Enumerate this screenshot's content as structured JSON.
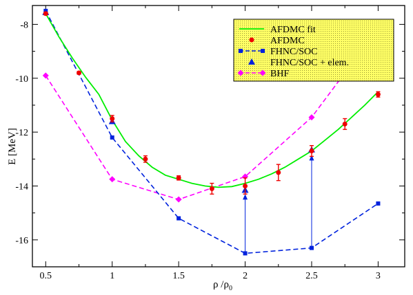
{
  "chart_data": {
    "type": "line",
    "xlabel": "ρ /ρ",
    "xlabel_sub": "0",
    "ylabel": "E [MeV]",
    "xlim": [
      0.4,
      3.2
    ],
    "ylim": [
      -17.0,
      -7.3
    ],
    "xticks": [
      0.5,
      1,
      1.5,
      2,
      2.5,
      3
    ],
    "xtick_labels": [
      "0.5",
      "1",
      "1.5",
      "2",
      "2.5",
      "3"
    ],
    "yticks": [
      -16,
      -14,
      -12,
      -10,
      -8
    ],
    "ytick_labels": [
      "-16",
      "-14",
      "-12",
      "-10",
      "-8"
    ],
    "legend_position": "top-right",
    "legend_bg": "#ffff66",
    "series": [
      {
        "name": "AFDMC fit",
        "kind": "fit",
        "color": "#00ee00",
        "x": [
          0.5,
          0.6,
          0.7,
          0.8,
          0.9,
          1.0,
          1.1,
          1.2,
          1.3,
          1.4,
          1.5,
          1.6,
          1.7,
          1.8,
          1.9,
          2.0,
          2.1,
          2.2,
          2.3,
          2.4,
          2.5,
          2.6,
          2.7,
          2.8,
          2.9,
          3.0
        ],
        "y": [
          -7.6,
          -8.47,
          -9.25,
          -9.96,
          -10.6,
          -11.55,
          -12.35,
          -12.88,
          -13.3,
          -13.6,
          -13.75,
          -13.9,
          -14.0,
          -14.05,
          -14.02,
          -13.9,
          -13.75,
          -13.55,
          -13.3,
          -13.0,
          -12.7,
          -12.3,
          -11.9,
          -11.45,
          -11.0,
          -10.5
        ]
      },
      {
        "name": "AFDMC",
        "kind": "errorbar",
        "color": "#ee0000",
        "x": [
          0.5,
          0.75,
          1.0,
          1.25,
          1.5,
          1.75,
          2.0,
          2.25,
          2.5,
          2.75,
          3.0
        ],
        "y": [
          -7.6,
          -9.8,
          -11.5,
          -13.0,
          -13.7,
          -14.1,
          -14.0,
          -13.5,
          -12.7,
          -11.7,
          -10.6
        ],
        "err": [
          0.05,
          0.05,
          0.12,
          0.12,
          0.08,
          0.2,
          0.3,
          0.3,
          0.2,
          0.2,
          0.1
        ]
      },
      {
        "name": "FHNC/SOC",
        "kind": "dashed-square",
        "color": "#0022dd",
        "x": [
          0.5,
          1.0,
          1.5,
          2.0,
          2.5,
          3.0
        ],
        "y": [
          -7.5,
          -12.2,
          -15.2,
          -16.5,
          -16.3,
          -14.65
        ]
      },
      {
        "name": "FHNC/SOC + elem.",
        "kind": "triangle",
        "color": "#0022dd",
        "x": [
          0.5,
          1.0,
          2.0,
          2.5
        ],
        "y": [
          -7.55,
          -11.6,
          -14.15,
          -12.65
        ]
      },
      {
        "name": "BHF",
        "kind": "dashed-diamond",
        "color": "#ff00ff",
        "x": [
          0.5,
          1.0,
          1.5,
          2.0,
          2.5,
          3.0
        ],
        "y": [
          -9.9,
          -13.75,
          -14.5,
          -13.65,
          -11.45,
          -8.15
        ]
      }
    ],
    "arrows": [
      {
        "x": 2.0,
        "from": -16.5,
        "to": -14.3
      },
      {
        "x": 2.5,
        "from": -16.3,
        "to": -12.85
      }
    ]
  }
}
